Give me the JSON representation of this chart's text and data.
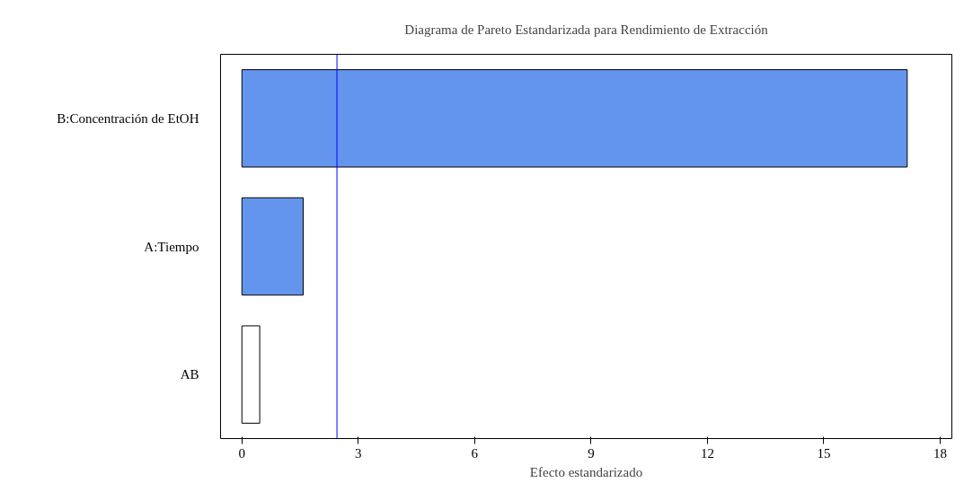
{
  "chart_data": {
    "type": "bar",
    "orientation": "horizontal",
    "title": "Diagrama de Pareto Estandarizada para Rendimiento de Extracción",
    "xlabel": "Efecto estandarizado",
    "categories": [
      "B:Concentración de EtOH",
      "A:Tiempo",
      "AB"
    ],
    "values": [
      17.15,
      1.58,
      0.46
    ],
    "colors": [
      "#6495ed",
      "#6495ed",
      "#ffffff"
    ],
    "xlim": [
      -0.55,
      18.3
    ],
    "xticks": [
      0,
      3,
      6,
      9,
      12,
      15,
      18
    ],
    "ref_lines": [
      {
        "axis": "x",
        "value": 2.45,
        "color": "#0000ff"
      }
    ],
    "grid": false
  }
}
